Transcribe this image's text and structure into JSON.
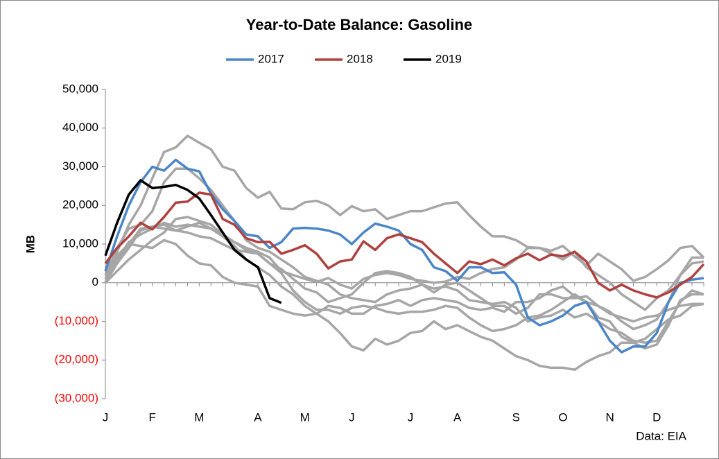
{
  "chart_data": {
    "type": "line",
    "title": "Year-to-Date Balance: Gasoline",
    "y_label": "MB",
    "source": "Data: EIA",
    "categories": [
      "J",
      null,
      null,
      null,
      "F",
      null,
      null,
      null,
      "M",
      null,
      null,
      null,
      null,
      "A",
      null,
      null,
      null,
      "M",
      null,
      null,
      null,
      "J",
      null,
      null,
      null,
      null,
      "J",
      null,
      null,
      null,
      "A",
      null,
      null,
      null,
      null,
      "S",
      null,
      null,
      null,
      "O",
      null,
      null,
      null,
      "N",
      null,
      null,
      null,
      "D",
      null,
      null,
      null,
      null
    ],
    "ylim": [
      -30000,
      50000
    ],
    "yticks": [
      {
        "value": -30000,
        "label": "(30,000)"
      },
      {
        "value": -20000,
        "label": "(20,000)"
      },
      {
        "value": -10000,
        "label": "(10,000)"
      },
      0,
      {
        "value": 10000,
        "label": "10,000"
      },
      {
        "value": 20000,
        "label": "20,000"
      },
      {
        "value": 30000,
        "label": "30,000"
      },
      {
        "value": 40000,
        "label": "40,000"
      },
      {
        "value": 50000,
        "label": "50,000"
      }
    ],
    "negative_tick_color": "#ff0000",
    "series": [
      {
        "color": "#a6a6a6",
        "values": [
          0,
          8000,
          15000,
          20000,
          27000,
          33800,
          35000,
          38000,
          36200,
          34500,
          30000,
          29000,
          24500,
          22000,
          23500,
          19200,
          19000,
          20800,
          21200,
          20000,
          17500,
          19800,
          18500,
          19000,
          16500,
          17500,
          18500,
          18500,
          19500,
          20500,
          20800,
          17500,
          14500,
          12000,
          12000,
          11000,
          9200,
          9000,
          8300,
          9500,
          6800,
          4500,
          7500,
          5500,
          3500,
          500,
          1500,
          3500,
          5800,
          9000,
          9500,
          6500
        ]
      },
      {
        "color": "#a6a6a6",
        "values": [
          2000,
          9000,
          14000,
          15000,
          18500,
          26000,
          29500,
          29500,
          27000,
          24000,
          20000,
          16000,
          11000,
          9000,
          8000,
          6000,
          4000,
          1500,
          500,
          -500,
          -3000,
          -4000,
          -4500,
          -5000,
          -3000,
          -2000,
          -1500,
          -500,
          -1500,
          -1000,
          -2000,
          -4500,
          -5000,
          -5500,
          -5000,
          -6500,
          -10000,
          -9000,
          -8500,
          -7000,
          -9000,
          -8000,
          -10000,
          -12000,
          -13000,
          -15000,
          -15500,
          -15000,
          -10000,
          -5000,
          -2000,
          -3000
        ]
      },
      {
        "color": "#a6a6a6",
        "values": [
          0,
          5000,
          9000,
          13500,
          14500,
          14000,
          13500,
          14500,
          15500,
          14000,
          12000,
          9500,
          6000,
          4000,
          2000,
          -1000,
          -3000,
          -6000,
          -8000,
          -10000,
          -13000,
          -16500,
          -17500,
          -14500,
          -16000,
          -15000,
          -13000,
          -12500,
          -10000,
          -12000,
          -11000,
          -12500,
          -14000,
          -15000,
          -17000,
          -19000,
          -20000,
          -21500,
          -22000,
          -22000,
          -22500,
          -20500,
          -19000,
          -18000,
          -15500,
          -15500,
          -14500,
          -12000,
          -9500,
          -8500,
          -6000,
          -5500
        ]
      },
      {
        "color": "#a6a6a6",
        "values": [
          1000,
          7000,
          10000,
          14000,
          14500,
          15000,
          13500,
          13000,
          12000,
          11500,
          10000,
          8500,
          8000,
          7500,
          5000,
          3500,
          1000,
          -1500,
          -2500,
          -5000,
          -4000,
          -3000,
          0,
          2500,
          3000,
          2500,
          1500,
          -500,
          -2500,
          -500,
          0,
          -2000,
          -4000,
          -6000,
          -6000,
          -8000,
          -6500,
          -3000,
          -3000,
          -4000,
          -4000,
          -3500,
          -6000,
          -7500,
          -10000,
          -12000,
          -11000,
          -9500,
          -5000,
          2000,
          6500,
          6500
        ]
      },
      {
        "color": "#a6a6a6",
        "values": [
          2000,
          5000,
          10000,
          9500,
          9000,
          11000,
          10000,
          7000,
          5000,
          4500,
          1500,
          0,
          -500,
          -1000,
          -6000,
          -7000,
          -8000,
          -8500,
          -8000,
          -6000,
          -6500,
          -8000,
          -8000,
          -6000,
          -5500,
          -4500,
          -6000,
          -4500,
          -4000,
          -4500,
          -5000,
          -6500,
          -7000,
          -6500,
          -7500,
          -5000,
          -5000,
          -4000,
          -2000,
          -1000,
          -3500,
          -5000,
          -9000,
          -10000,
          -14000,
          -15500,
          -17000,
          -16000,
          -11000,
          -4500,
          -3000,
          -3000
        ]
      },
      {
        "color": "#a6a6a6",
        "values": [
          0,
          3000,
          6000,
          8500,
          11000,
          13000,
          16500,
          17000,
          16000,
          15000,
          12500,
          10500,
          8500,
          7500,
          5000,
          2500,
          -2000,
          -5000,
          -7000,
          -7000,
          -8000,
          -6500,
          -6000,
          -6500,
          -7500,
          -8000,
          -7500,
          -7500,
          -7000,
          -6000,
          -6500,
          -9000,
          -11000,
          -12500,
          -12000,
          -11000,
          -9000,
          -8500,
          -7000,
          -5000,
          -3000,
          -5000,
          -6000,
          -8000,
          -9000,
          -10000,
          -9000,
          -8500,
          -7000,
          -6000,
          -5500,
          -5500
        ]
      },
      {
        "color": "#a6a6a6",
        "values": [
          1000,
          6000,
          10500,
          12500,
          14000,
          15500,
          14500,
          15000,
          14500,
          14000,
          12000,
          10500,
          9000,
          8000,
          6500,
          3000,
          2000,
          1000,
          200,
          1200,
          -500,
          -1500,
          1000,
          2000,
          2500,
          2000,
          1000,
          500,
          0,
          300,
          1500,
          1000,
          2500,
          3500,
          4000,
          6000,
          9000,
          9000,
          7500,
          6000,
          8000,
          4000,
          2000,
          0,
          -3000,
          -5000,
          -7000,
          -4000,
          -2000,
          2000,
          5000,
          5500
        ]
      },
      {
        "name": "2017",
        "color": "#4a86c8",
        "values": [
          3000,
          12000,
          20000,
          26000,
          30000,
          29000,
          31800,
          29500,
          28800,
          23000,
          19000,
          16000,
          12500,
          12000,
          9000,
          10500,
          14000,
          14200,
          14000,
          13500,
          12500,
          10000,
          13000,
          15300,
          14500,
          13500,
          10000,
          8500,
          4000,
          3000,
          500,
          4000,
          4000,
          2500,
          2700,
          -500,
          -9000,
          -11000,
          -10000,
          -8500,
          -6000,
          -5000,
          -10000,
          -15000,
          -18000,
          -16500,
          -16500,
          -13000,
          -5000,
          0,
          800,
          1200
        ]
      },
      {
        "name": "2018",
        "color": "#b0413e",
        "values": [
          5000,
          9000,
          12000,
          15500,
          13800,
          17000,
          20700,
          21000,
          23300,
          22800,
          16500,
          15000,
          11500,
          10500,
          10600,
          7500,
          8500,
          9700,
          7500,
          3700,
          5500,
          6000,
          10700,
          8500,
          11500,
          12500,
          11500,
          10500,
          7500,
          5000,
          2500,
          5500,
          4800,
          6000,
          4500,
          6300,
          7500,
          5800,
          7300,
          6800,
          8000,
          5500,
          0,
          -2000,
          -500,
          -2000,
          -3000,
          -3800,
          -2500,
          -500,
          1500,
          4800
        ]
      },
      {
        "name": "2019",
        "color": "#000000",
        "values": [
          7000,
          15500,
          22800,
          26500,
          24500,
          24800,
          25300,
          24000,
          21800,
          17500,
          13000,
          8500,
          6000,
          4000,
          -4000,
          -5200,
          null,
          null,
          null,
          null,
          null,
          null,
          null,
          null,
          null,
          null,
          null,
          null,
          null,
          null,
          null,
          null,
          null,
          null,
          null,
          null,
          null,
          null,
          null,
          null,
          null,
          null,
          null,
          null,
          null,
          null,
          null,
          null,
          null,
          null,
          null,
          null
        ]
      }
    ]
  }
}
